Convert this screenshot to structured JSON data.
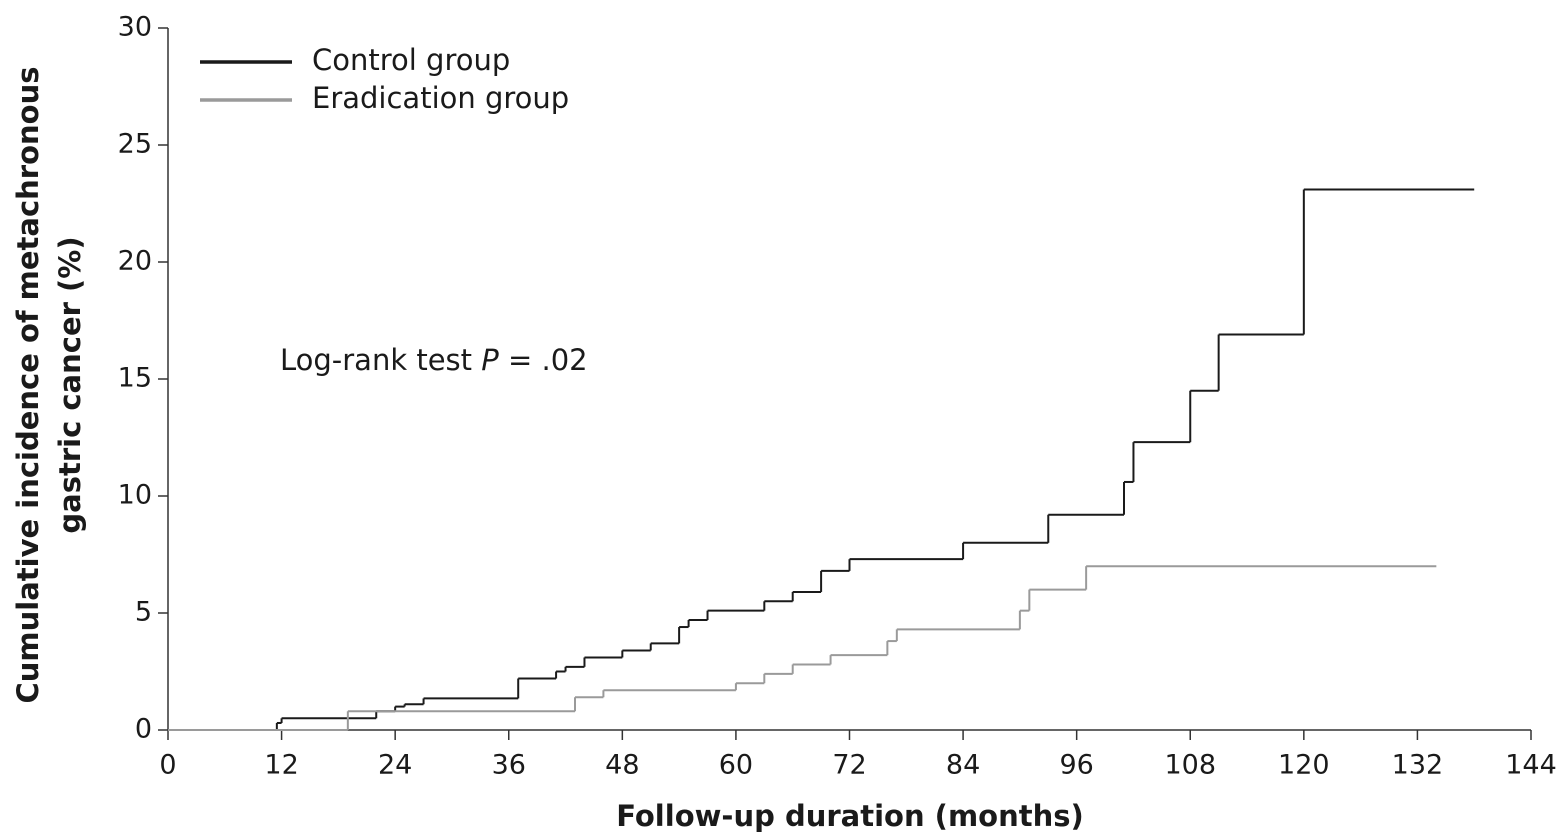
{
  "chart_data": {
    "type": "step",
    "xlabel": "Follow-up duration (months)",
    "ylabel": [
      "Cumulative incidence of metachronous",
      "gastric cancer (%)"
    ],
    "annotation": [
      "Log-rank test ",
      "P",
      " = .02"
    ],
    "xlim": [
      0,
      144
    ],
    "ylim": [
      0,
      30
    ],
    "xticks": [
      0,
      12,
      24,
      36,
      48,
      60,
      72,
      84,
      96,
      108,
      120,
      132,
      144
    ],
    "yticks": [
      0,
      5,
      10,
      15,
      20,
      25,
      30
    ],
    "series": [
      {
        "name": "Control group",
        "color": "#1a1a1a",
        "x": [
          0,
          11.5,
          12,
          22,
          24,
          25,
          27,
          37,
          41,
          42,
          44,
          48,
          51,
          54,
          55,
          57,
          63,
          66,
          69,
          72,
          84,
          93,
          101,
          102,
          108,
          111,
          120,
          138
        ],
        "values": [
          0,
          0.3,
          0.5,
          0.8,
          1.0,
          1.1,
          1.35,
          2.2,
          2.5,
          2.7,
          3.1,
          3.4,
          3.7,
          4.4,
          4.7,
          5.1,
          5.5,
          5.9,
          6.8,
          7.3,
          8.0,
          9.2,
          10.6,
          12.3,
          14.5,
          16.9,
          23.1,
          23.1
        ]
      },
      {
        "name": "Eradication group",
        "color": "#9a9a9a",
        "x": [
          0,
          19,
          43,
          46,
          60,
          63,
          66,
          70,
          76,
          77,
          90,
          91,
          97,
          134
        ],
        "values": [
          0,
          0.8,
          1.4,
          1.7,
          2.0,
          2.4,
          2.8,
          3.2,
          3.8,
          4.3,
          5.1,
          6.0,
          7.0,
          7.0
        ]
      }
    ]
  }
}
